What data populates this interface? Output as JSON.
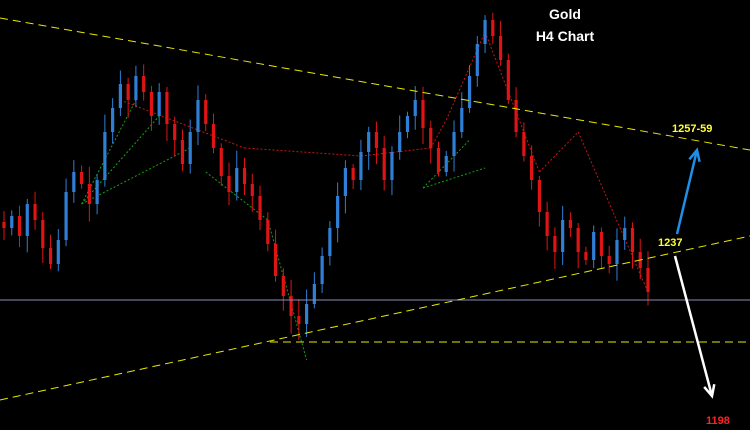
{
  "chart": {
    "title": "Gold",
    "subtitle": "H4 Chart",
    "levels": {
      "upper": "1257-59",
      "middle": "1237",
      "lower": "1198"
    },
    "colors": {
      "background": "#000000",
      "bull_candle": "#2f7fd6",
      "bear_candle": "#e01414",
      "trendline": "#e8e800",
      "horizontal_line": "#8c8cb4",
      "zigzag_red": "#c81414",
      "zigzag_green": "#14a014",
      "arrow_up": "#1e90e8",
      "arrow_down": "#ffffff"
    }
  },
  "chart_data": {
    "type": "candlestick",
    "title": "Gold",
    "subtitle": "H4 Chart",
    "annotations": [
      "1257-59",
      "1237",
      "1198"
    ],
    "grid": false,
    "candles_close": [
      1238,
      1241,
      1236,
      1244,
      1240,
      1233,
      1229,
      1235,
      1247,
      1252,
      1249,
      1244,
      1250,
      1262,
      1268,
      1274,
      1270,
      1276,
      1272,
      1266,
      1272,
      1264,
      1260,
      1254,
      1262,
      1270,
      1264,
      1258,
      1251,
      1247,
      1253,
      1249,
      1246,
      1240,
      1234,
      1226,
      1221,
      1216,
      1214,
      1219,
      1224,
      1231,
      1238,
      1246,
      1253,
      1250,
      1257,
      1262,
      1258,
      1250,
      1257,
      1262,
      1266,
      1270,
      1263,
      1258,
      1252,
      1256,
      1262,
      1268,
      1276,
      1284,
      1290,
      1286,
      1280,
      1270,
      1262,
      1256,
      1250,
      1242,
      1236,
      1232,
      1240,
      1238,
      1232,
      1230,
      1237,
      1231,
      1229,
      1235,
      1238,
      1232,
      1228,
      1222
    ]
  }
}
